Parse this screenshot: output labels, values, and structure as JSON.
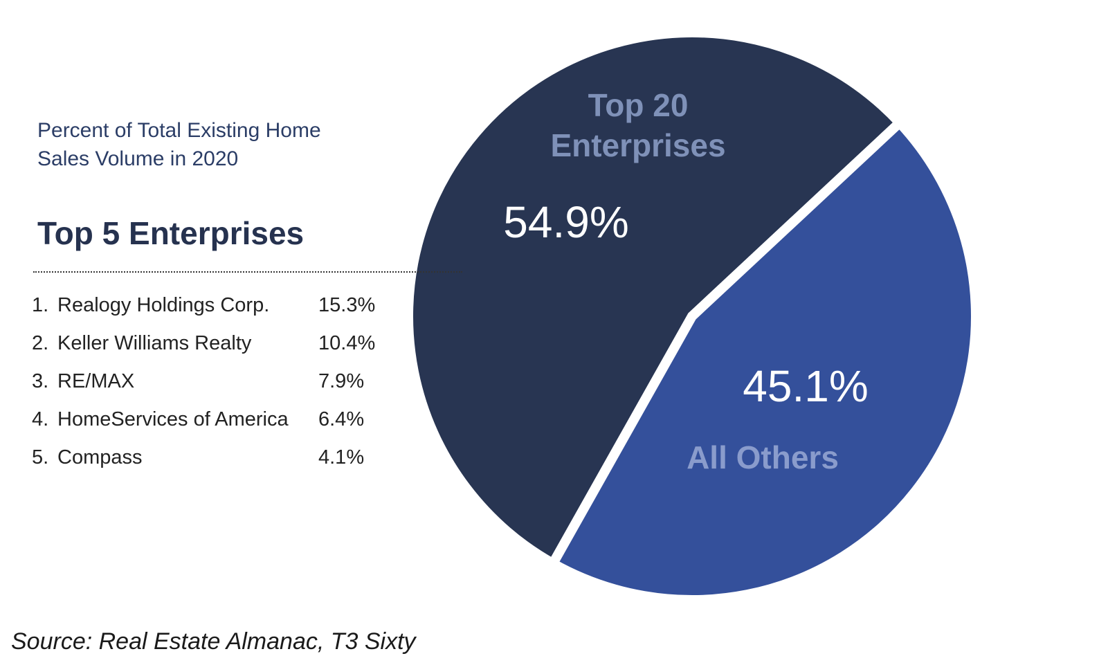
{
  "chart_data": {
    "type": "pie",
    "title": "Percent of Total Existing Home Sales Volume in 2020",
    "slices": [
      {
        "label": "Top 20 Enterprises",
        "value": 54.9,
        "value_label": "54.9%",
        "color": "#283552",
        "label_color": "#7f91b8"
      },
      {
        "label": "All Others",
        "value": 45.1,
        "value_label": "45.1%",
        "color": "#34509b",
        "label_color": "#8a9ccc"
      }
    ],
    "ranking": {
      "title": "Top 5 Enterprises",
      "items": [
        {
          "rank": "1.",
          "name": "Realogy Holdings Corp.",
          "value": "15.3%"
        },
        {
          "rank": "2.",
          "name": "Keller Williams Realty",
          "value": "10.4%"
        },
        {
          "rank": "3.",
          "name": "RE/MAX",
          "value": "7.9%"
        },
        {
          "rank": "4.",
          "name": "HomeServices of America",
          "value": "6.4%"
        },
        {
          "rank": "5.",
          "name": "Compass",
          "value": "4.1%"
        }
      ]
    }
  },
  "source": "Source: Real Estate Almanac, T3 Sixty"
}
